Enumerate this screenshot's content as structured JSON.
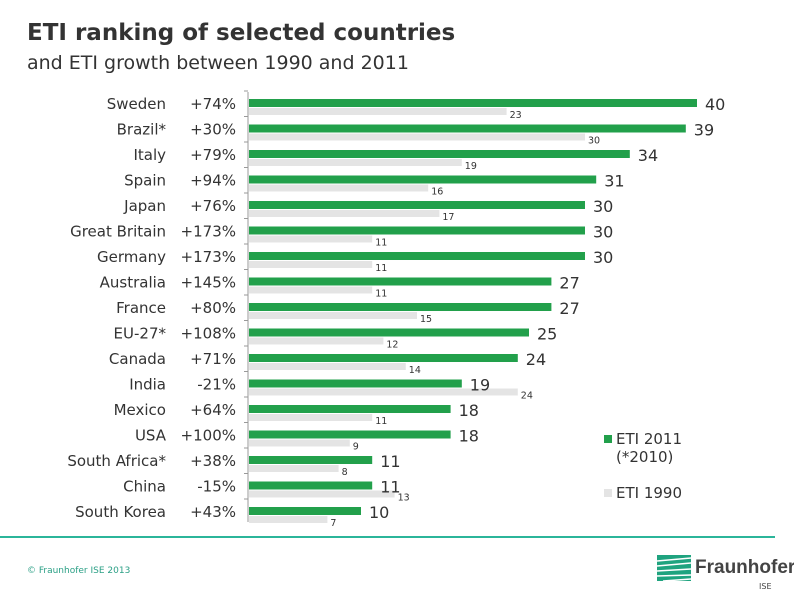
{
  "header": {
    "title": "ETI ranking of selected countries",
    "subtitle": "and ETI growth between 1990 and 2011"
  },
  "chart_data": {
    "type": "bar",
    "orientation": "horizontal",
    "title": "ETI ranking of selected countries",
    "subtitle": "and ETI growth between 1990 and 2011",
    "categories": [
      "Sweden",
      "Brazil*",
      "Italy",
      "Spain",
      "Japan",
      "Great Britain",
      "Germany",
      "Australia",
      "France",
      "EU-27*",
      "Canada",
      "India",
      "Mexico",
      "USA",
      "South Africa*",
      "China",
      "South Korea"
    ],
    "growth": [
      "+74%",
      "+30%",
      "+79%",
      "+94%",
      "+76%",
      "+173%",
      "+173%",
      "+145%",
      "+80%",
      "+108%",
      "+71%",
      "-21%",
      "+64%",
      "+100%",
      "+38%",
      "-15%",
      "+43%"
    ],
    "series": [
      {
        "name": "ETI 2011 (*2010)",
        "color": "#22a04b",
        "values": [
          40,
          39,
          34,
          31,
          30,
          30,
          30,
          27,
          27,
          25,
          24,
          19,
          18,
          18,
          11,
          11,
          10
        ]
      },
      {
        "name": "ETI 1990",
        "color": "#e4e4e4",
        "values": [
          23,
          30,
          19,
          16,
          17,
          11,
          11,
          11,
          15,
          12,
          14,
          24,
          11,
          9,
          8,
          13,
          7
        ]
      }
    ],
    "xlim": [
      0,
      40
    ],
    "legend_position": "bottom-right"
  },
  "legend": {
    "eti2011": "ETI 2011",
    "eti2011_note": "(*2010)",
    "eti1990": "ETI 1990"
  },
  "footer": {
    "copyright": "© Fraunhofer ISE 2013",
    "logo": "Fraunhofer",
    "logo_sub": "ISE"
  }
}
